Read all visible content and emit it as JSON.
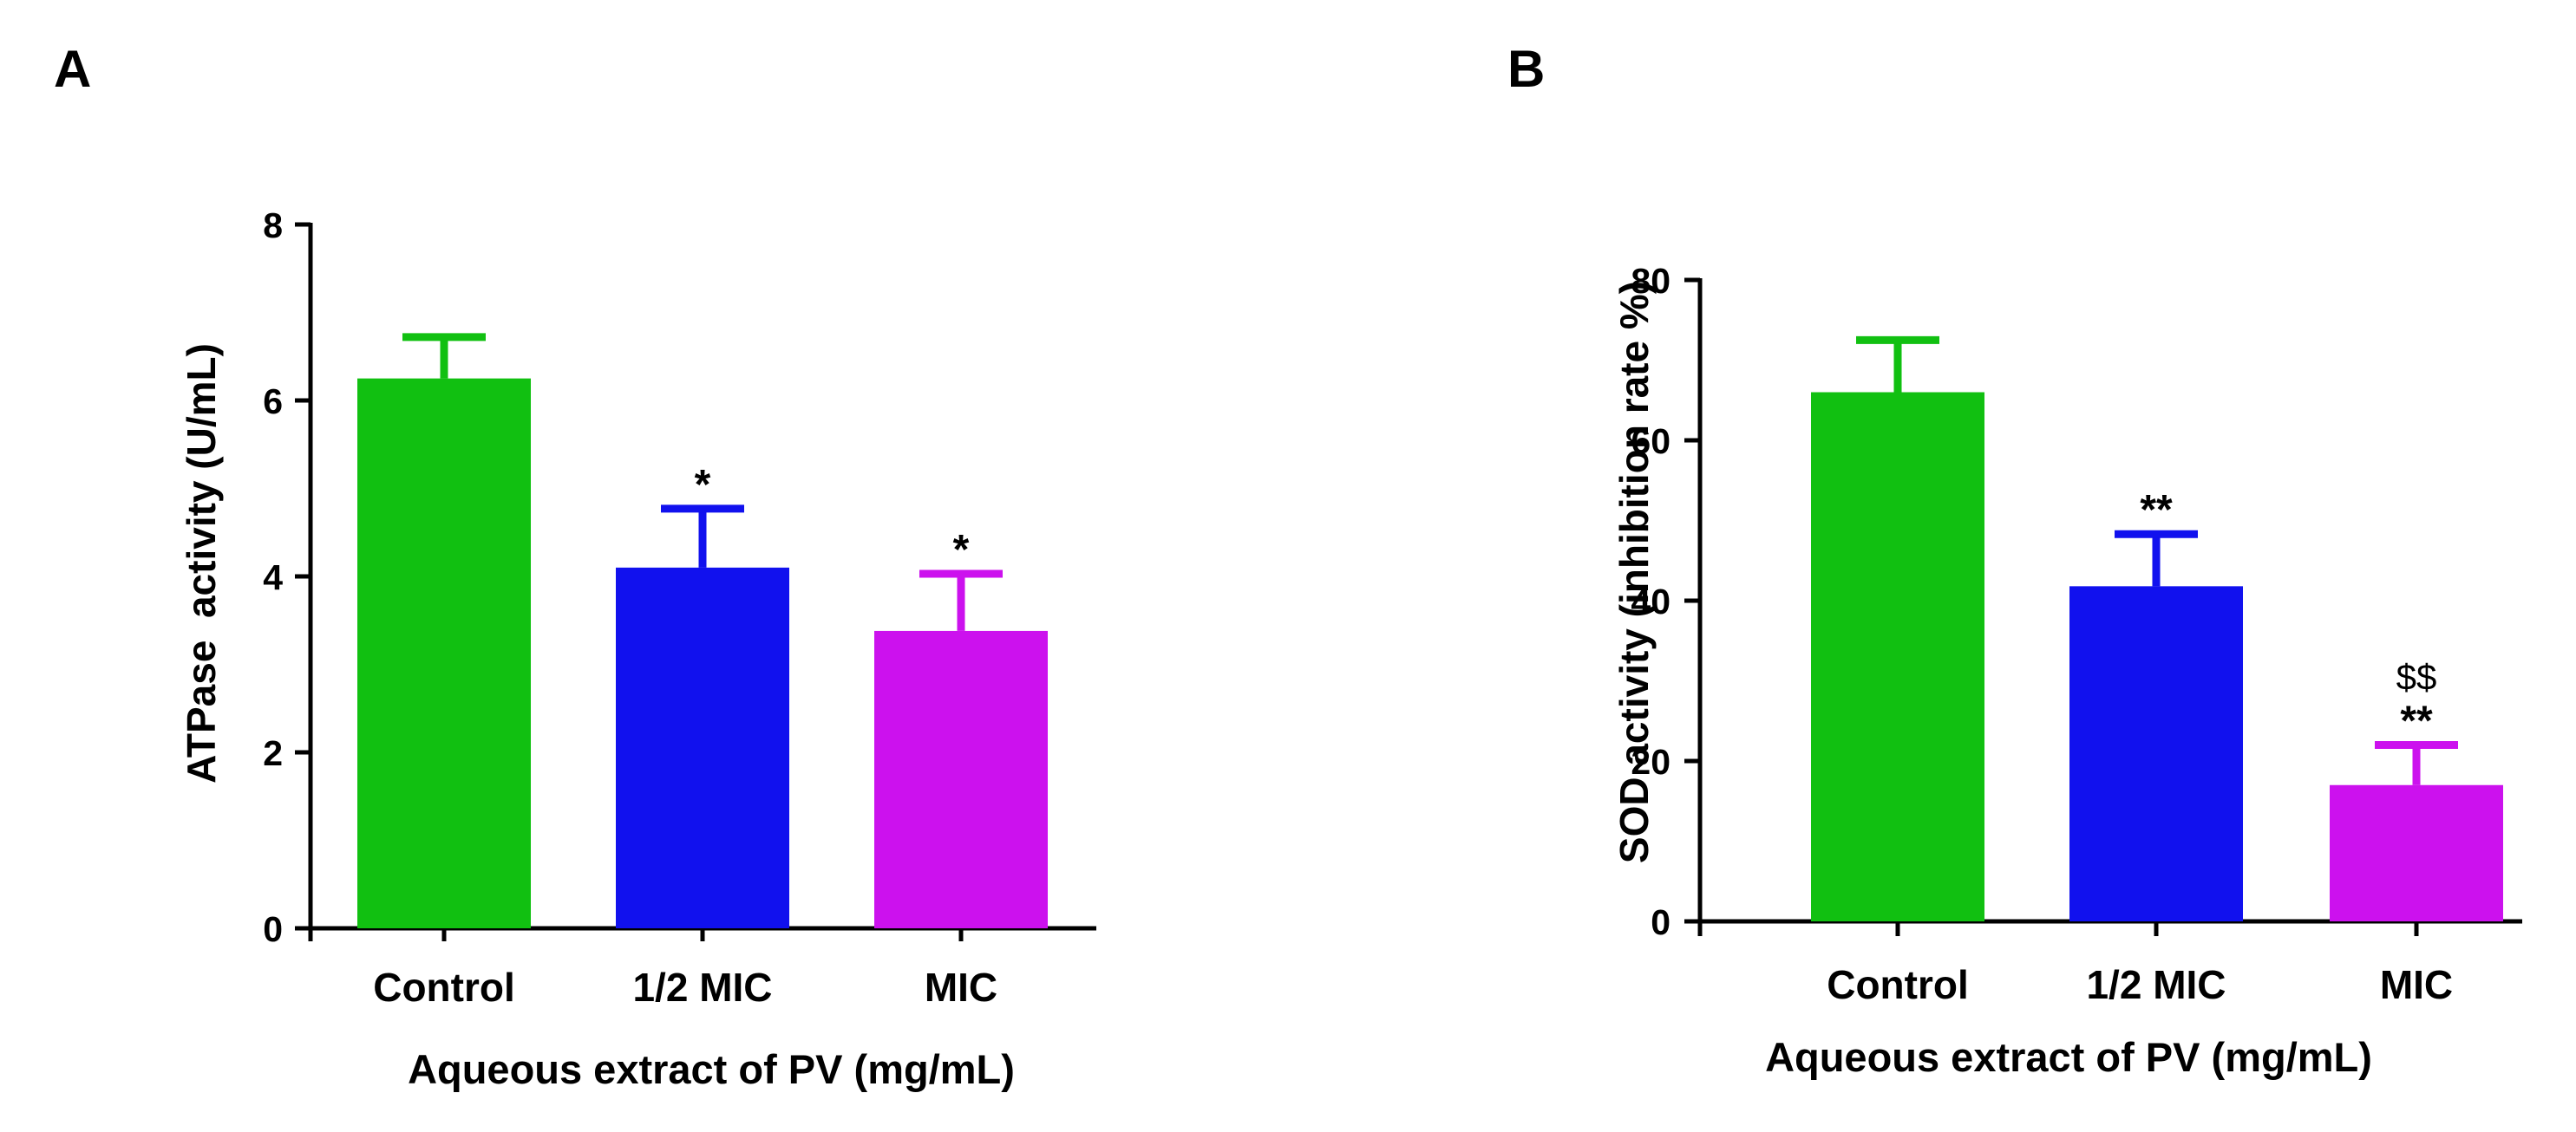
{
  "chart_data": [
    {
      "panel": "A",
      "type": "bar",
      "categories": [
        "Control",
        "1/2 MIC",
        "MIC"
      ],
      "values": [
        6.25,
        4.1,
        3.38
      ],
      "errors": [
        0.47,
        0.67,
        0.65
      ],
      "colors": [
        "#11c011",
        "#1111ee",
        "#cc11ee"
      ],
      "significance": [
        "",
        "*",
        "*"
      ],
      "significance2": [
        "",
        "",
        ""
      ],
      "xlabel": "Aqueous extract of PV (mg/mL)",
      "ylabel": "ATPase  activity (U/mL)",
      "ylim": [
        0,
        8
      ],
      "yticks": [
        0,
        2,
        4,
        6,
        8
      ],
      "grid": false
    },
    {
      "panel": "B",
      "type": "bar",
      "categories": [
        "Control",
        "1/2 MIC",
        "MIC"
      ],
      "values": [
        66,
        41.8,
        17
      ],
      "errors": [
        6.5,
        6.5,
        5.0
      ],
      "colors": [
        "#11c011",
        "#1111ee",
        "#cc11ee"
      ],
      "significance": [
        "",
        "**",
        "**"
      ],
      "significance2": [
        "",
        "",
        "$$"
      ],
      "xlabel": "Aqueous extract of PV (mg/mL)",
      "ylabel": "SOD activity (inhibition rate %)",
      "ylim": [
        0,
        80
      ],
      "yticks": [
        0,
        20,
        40,
        60,
        80
      ],
      "grid": false
    }
  ]
}
